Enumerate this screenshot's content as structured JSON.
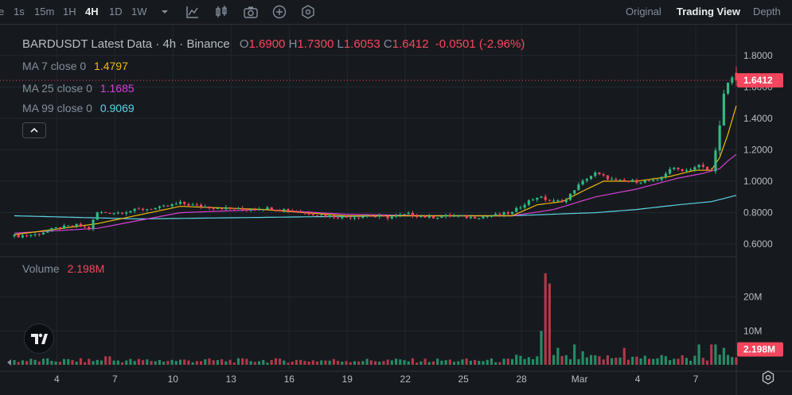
{
  "toolbar": {
    "timeframes": [
      "e",
      "1s",
      "15m",
      "1H",
      "4H",
      "1D",
      "1W"
    ],
    "active_timeframe": "4H",
    "views": [
      "Original",
      "Trading View",
      "Depth"
    ],
    "active_view": "Trading View"
  },
  "legend": {
    "title": "BARDUSDT Latest Data · 4h · Binance",
    "ohlc": {
      "o_label": "O",
      "o": "1.6900",
      "h_label": "H",
      "h": "1.7300",
      "l_label": "L",
      "l": "1.6053",
      "c_label": "C",
      "c": "1.6412",
      "change": "-0.0501 (-2.96%)"
    },
    "ma7": {
      "label": "MA 7 close 0",
      "value": "1.4797",
      "color": "#f0b90b"
    },
    "ma25": {
      "label": "MA 25 close 0",
      "value": "1.1685",
      "color": "#d63fd6"
    },
    "ma99": {
      "label": "MA 99 close 0",
      "value": "0.9069",
      "color": "#5fd3e4"
    },
    "volume_label": "Volume",
    "volume_value": "2.198M"
  },
  "colors": {
    "up": "#2ebd85",
    "down": "#f6465d",
    "grid": "#22272e",
    "axis_text": "#b7bdc6"
  },
  "icons": [
    "chevron-down-icon",
    "indicator-icon",
    "candle-type-icon",
    "camera-icon",
    "add-icon",
    "settings-hex-icon",
    "chevron-up-icon",
    "tradingview-logo-icon",
    "gear-icon"
  ],
  "chart_data": {
    "type": "candlestick",
    "x_ticks": [
      "4",
      "7",
      "10",
      "13",
      "16",
      "19",
      "22",
      "25",
      "28",
      "Mar",
      "4",
      "7"
    ],
    "price_ticks": [
      "1.8000",
      "1.6000",
      "1.4000",
      "1.2000",
      "1.0000",
      "0.8000",
      "0.6000"
    ],
    "price_range": [
      0.55,
      1.9
    ],
    "last_price": "1.6412",
    "volume_ticks": [
      "20M",
      "10M"
    ],
    "volume_range": [
      0,
      30
    ],
    "last_volume": "2.198M",
    "price_path": [
      [
        0,
        0.65
      ],
      [
        5,
        0.66
      ],
      [
        10,
        0.7
      ],
      [
        15,
        0.72
      ],
      [
        18,
        0.7
      ],
      [
        20,
        0.8
      ],
      [
        25,
        0.8
      ],
      [
        30,
        0.82
      ],
      [
        35,
        0.83
      ],
      [
        40,
        0.86
      ],
      [
        45,
        0.84
      ],
      [
        50,
        0.83
      ],
      [
        55,
        0.82
      ],
      [
        60,
        0.83
      ],
      [
        65,
        0.82
      ],
      [
        70,
        0.8
      ],
      [
        75,
        0.78
      ],
      [
        80,
        0.77
      ],
      [
        85,
        0.78
      ],
      [
        90,
        0.77
      ],
      [
        95,
        0.79
      ],
      [
        100,
        0.77
      ],
      [
        105,
        0.78
      ],
      [
        110,
        0.77
      ],
      [
        115,
        0.78
      ],
      [
        120,
        0.8
      ],
      [
        123,
        0.86
      ],
      [
        126,
        0.9
      ],
      [
        130,
        0.87
      ],
      [
        133,
        0.88
      ],
      [
        135,
        0.95
      ],
      [
        138,
        1.02
      ],
      [
        140,
        1.05
      ],
      [
        145,
        1.0
      ],
      [
        150,
        1.0
      ],
      [
        155,
        1.0
      ],
      [
        158,
        1.08
      ],
      [
        162,
        1.07
      ],
      [
        165,
        1.1
      ],
      [
        168,
        1.06
      ],
      [
        170,
        1.35
      ],
      [
        171,
        1.55
      ],
      [
        172,
        1.62
      ],
      [
        173,
        1.66
      ],
      [
        174,
        1.64
      ]
    ],
    "ma7_path": [
      [
        0,
        0.66
      ],
      [
        20,
        0.73
      ],
      [
        40,
        0.84
      ],
      [
        60,
        0.82
      ],
      [
        80,
        0.78
      ],
      [
        100,
        0.78
      ],
      [
        120,
        0.78
      ],
      [
        126,
        0.85
      ],
      [
        132,
        0.87
      ],
      [
        138,
        0.95
      ],
      [
        142,
        1.0
      ],
      [
        150,
        1.0
      ],
      [
        158,
        1.03
      ],
      [
        164,
        1.07
      ],
      [
        168,
        1.07
      ],
      [
        170,
        1.15
      ],
      [
        172,
        1.3
      ],
      [
        174,
        1.48
      ]
    ],
    "ma25_path": [
      [
        0,
        0.67
      ],
      [
        20,
        0.7
      ],
      [
        40,
        0.8
      ],
      [
        60,
        0.82
      ],
      [
        80,
        0.79
      ],
      [
        100,
        0.78
      ],
      [
        120,
        0.78
      ],
      [
        130,
        0.82
      ],
      [
        140,
        0.9
      ],
      [
        150,
        0.95
      ],
      [
        160,
        1.02
      ],
      [
        166,
        1.05
      ],
      [
        170,
        1.08
      ],
      [
        172,
        1.13
      ],
      [
        174,
        1.17
      ]
    ],
    "ma99_path": [
      [
        0,
        0.78
      ],
      [
        30,
        0.76
      ],
      [
        60,
        0.77
      ],
      [
        90,
        0.78
      ],
      [
        120,
        0.78
      ],
      [
        140,
        0.8
      ],
      [
        150,
        0.82
      ],
      [
        160,
        0.85
      ],
      [
        168,
        0.87
      ],
      [
        174,
        0.91
      ]
    ],
    "volume_spikes": [
      [
        128,
        27
      ],
      [
        129,
        24
      ],
      [
        127,
        10
      ],
      [
        131,
        5
      ],
      [
        135,
        6
      ],
      [
        137,
        4
      ],
      [
        147,
        5
      ],
      [
        165,
        6
      ],
      [
        168,
        6
      ],
      [
        169,
        6
      ],
      [
        171,
        5
      ]
    ],
    "volume_base": 1.5
  }
}
